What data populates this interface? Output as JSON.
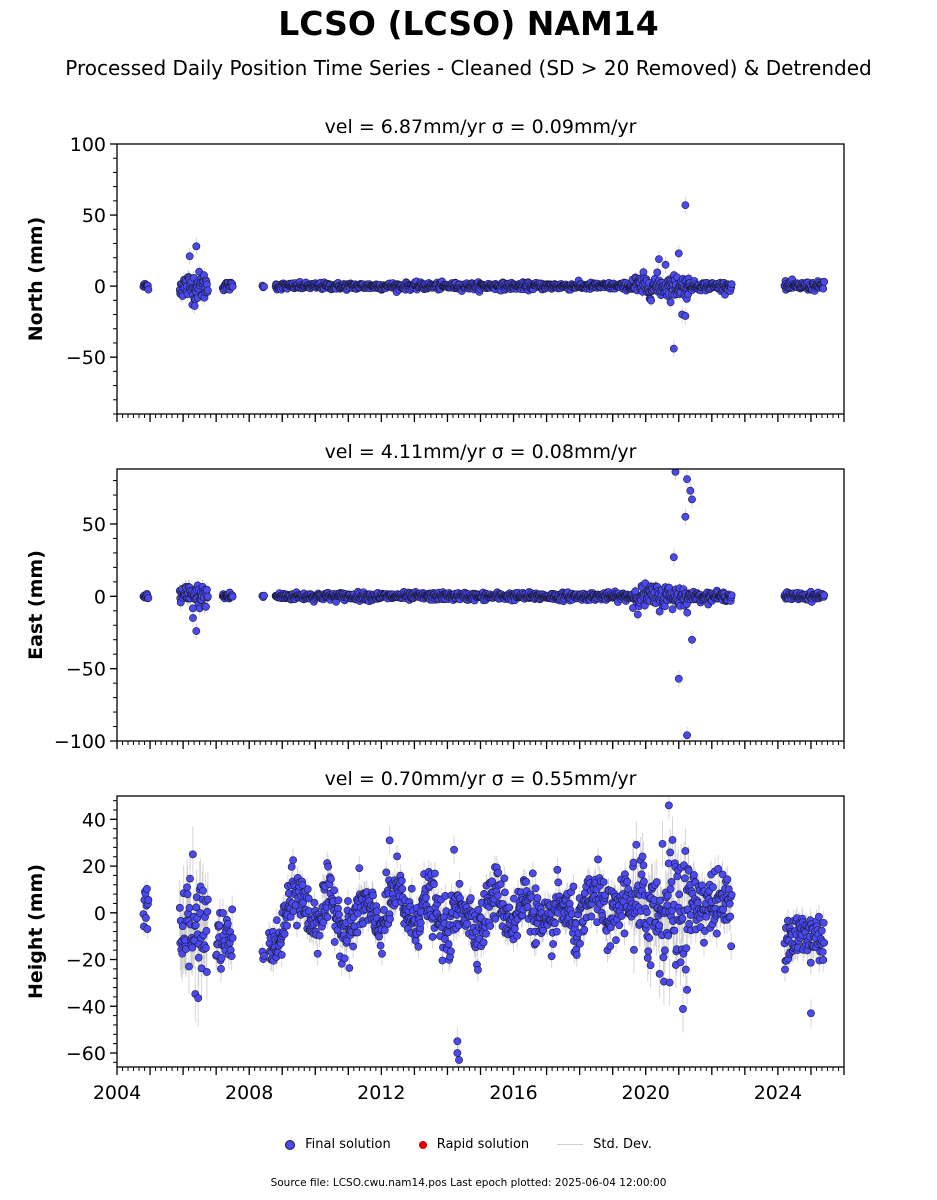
{
  "title": "LCSO (LCSO) NAM14",
  "subtitle": "Processed Daily Position Time Series - Cleaned (SD > 20 Removed) & Detrended",
  "colors": {
    "final": "#4a4af0",
    "final_edge": "#1a1a3a",
    "rapid": "#e00000",
    "stddev": "#bdbdbd"
  },
  "chart_data": [
    {
      "type": "scatter",
      "panel_title": "vel = 6.87mm/yr   σ = 0.09mm/yr",
      "ylabel": "North (mm)",
      "xlim": [
        2004.0,
        2026.0
      ],
      "ylim": [
        -90,
        100
      ],
      "yticks": [
        -50,
        0,
        50,
        100
      ],
      "x_ticks": [
        "2004",
        "2008",
        "2012",
        "2016",
        "2020",
        "2024"
      ],
      "segments": [
        {
          "start": 2004.8,
          "end": 2004.95,
          "sd": 1.5,
          "noise": 1.2
        },
        {
          "start": 2005.9,
          "end": 2006.75,
          "sd": 5,
          "noise": 5
        },
        {
          "start": 2007.2,
          "end": 2007.5,
          "sd": 2,
          "noise": 1.5
        },
        {
          "start": 2008.4,
          "end": 2008.45,
          "sd": 1,
          "noise": 0.5
        },
        {
          "start": 2008.8,
          "end": 2019.6,
          "sd": 1.5,
          "noise": 1.2
        },
        {
          "start": 2019.6,
          "end": 2021.3,
          "sd": 4,
          "noise": 4
        },
        {
          "start": 2021.3,
          "end": 2022.6,
          "sd": 2,
          "noise": 1.5
        },
        {
          "start": 2024.2,
          "end": 2025.4,
          "sd": 2,
          "noise": 1.5
        }
      ],
      "outliers": [
        [
          2006.4,
          28
        ],
        [
          2006.2,
          21
        ],
        [
          2006.35,
          -14
        ],
        [
          2020.85,
          -44
        ],
        [
          2021.2,
          57
        ],
        [
          2021.0,
          23
        ],
        [
          2020.4,
          19
        ],
        [
          2021.1,
          -20
        ],
        [
          2021.2,
          -21
        ],
        [
          2020.6,
          15
        ]
      ]
    },
    {
      "type": "scatter",
      "panel_title": "vel = 4.11mm/yr   σ = 0.08mm/yr",
      "ylabel": "East (mm)",
      "xlim": [
        2004.0,
        2026.0
      ],
      "ylim": [
        -100,
        88
      ],
      "yticks": [
        -100,
        -50,
        0,
        50
      ],
      "x_ticks": [
        "2004",
        "2008",
        "2012",
        "2016",
        "2020",
        "2024"
      ],
      "segments": [
        {
          "start": 2004.8,
          "end": 2004.95,
          "sd": 1.5,
          "noise": 1.2
        },
        {
          "start": 2005.9,
          "end": 2006.75,
          "sd": 5,
          "noise": 4
        },
        {
          "start": 2007.2,
          "end": 2007.5,
          "sd": 2,
          "noise": 1.5
        },
        {
          "start": 2008.4,
          "end": 2008.45,
          "sd": 1,
          "noise": 0.5
        },
        {
          "start": 2008.8,
          "end": 2019.6,
          "sd": 1.5,
          "noise": 1.3
        },
        {
          "start": 2019.6,
          "end": 2021.3,
          "sd": 4,
          "noise": 4
        },
        {
          "start": 2021.3,
          "end": 2022.6,
          "sd": 2,
          "noise": 1.5
        },
        {
          "start": 2024.2,
          "end": 2025.4,
          "sd": 2,
          "noise": 1.3
        }
      ],
      "outliers": [
        [
          2006.3,
          -15
        ],
        [
          2006.4,
          -24
        ],
        [
          2020.9,
          86
        ],
        [
          2021.25,
          81
        ],
        [
          2021.35,
          73
        ],
        [
          2021.4,
          67
        ],
        [
          2021.2,
          55
        ],
        [
          2020.85,
          27
        ],
        [
          2021.0,
          -57
        ],
        [
          2021.25,
          -96
        ],
        [
          2021.4,
          -30
        ]
      ]
    },
    {
      "type": "scatter",
      "panel_title": "vel = 0.70mm/yr   σ = 0.55mm/yr",
      "ylabel": "Height (mm)",
      "xlim": [
        2004.0,
        2026.0
      ],
      "ylim": [
        -66,
        50
      ],
      "yticks": [
        -60,
        -40,
        -20,
        0,
        20,
        40
      ],
      "x_ticks": [
        "2004",
        "2008",
        "2012",
        "2016",
        "2020",
        "2024"
      ],
      "segments": [
        {
          "start": 2004.8,
          "end": 2004.95,
          "sd": 4,
          "noise": 5,
          "offset": 5
        },
        {
          "start": 2005.9,
          "end": 2006.75,
          "sd": 12,
          "noise": 12,
          "offset": -8
        },
        {
          "start": 2007.0,
          "end": 2007.5,
          "sd": 6,
          "noise": 6,
          "offset": -12
        },
        {
          "start": 2008.4,
          "end": 2008.45,
          "sd": 3,
          "noise": 1,
          "offset": -18
        },
        {
          "start": 2008.6,
          "end": 2009.0,
          "sd": 5,
          "noise": 4,
          "offset": -14
        },
        {
          "start": 2009.0,
          "end": 2019.6,
          "sd": 5,
          "noise": 6,
          "offset": 0,
          "seasonal": 6
        },
        {
          "start": 2019.6,
          "end": 2021.3,
          "sd": 10,
          "noise": 13,
          "offset": 2
        },
        {
          "start": 2021.3,
          "end": 2022.6,
          "sd": 6,
          "noise": 7,
          "offset": 4
        },
        {
          "start": 2024.2,
          "end": 2025.4,
          "sd": 5,
          "noise": 6,
          "offset": -10
        }
      ],
      "outliers": [
        [
          2014.3,
          -55
        ],
        [
          2014.3,
          -60
        ],
        [
          2014.35,
          -63
        ],
        [
          2014.2,
          27
        ],
        [
          2012.25,
          31
        ],
        [
          2025.0,
          -43
        ],
        [
          2021.25,
          -33
        ],
        [
          2020.7,
          46
        ]
      ]
    }
  ],
  "legend": [
    {
      "label": "Final solution",
      "kind": "final"
    },
    {
      "label": "Rapid solution",
      "kind": "rapid"
    },
    {
      "label": "Std. Dev.",
      "kind": "stddev"
    }
  ],
  "footer": "Source file: LCSO.cwu.nam14.pos  Last epoch plotted: 2025-06-04 12:00:00"
}
